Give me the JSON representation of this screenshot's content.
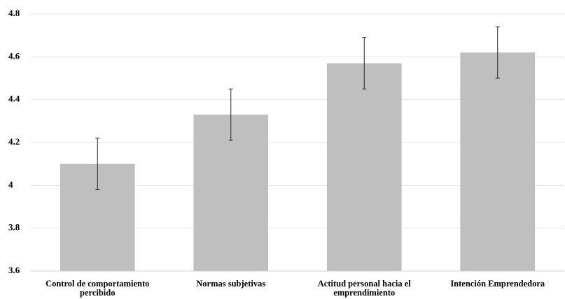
{
  "chart_data": {
    "type": "bar",
    "categories": [
      "Control de comportamiento percibido",
      "Normas subjetivas",
      "Actitud personal hacia el emprendimiento",
      "Intención Emprendedora"
    ],
    "values": [
      4.1,
      4.33,
      4.57,
      4.62
    ],
    "errors": [
      0.12,
      0.12,
      0.12,
      0.12
    ],
    "color": "#bfbfbf",
    "ylim": [
      3.6,
      4.8
    ],
    "yticks": [
      3.6,
      3.8,
      4,
      4.2,
      4.4,
      4.6,
      4.8
    ],
    "grid": true
  }
}
